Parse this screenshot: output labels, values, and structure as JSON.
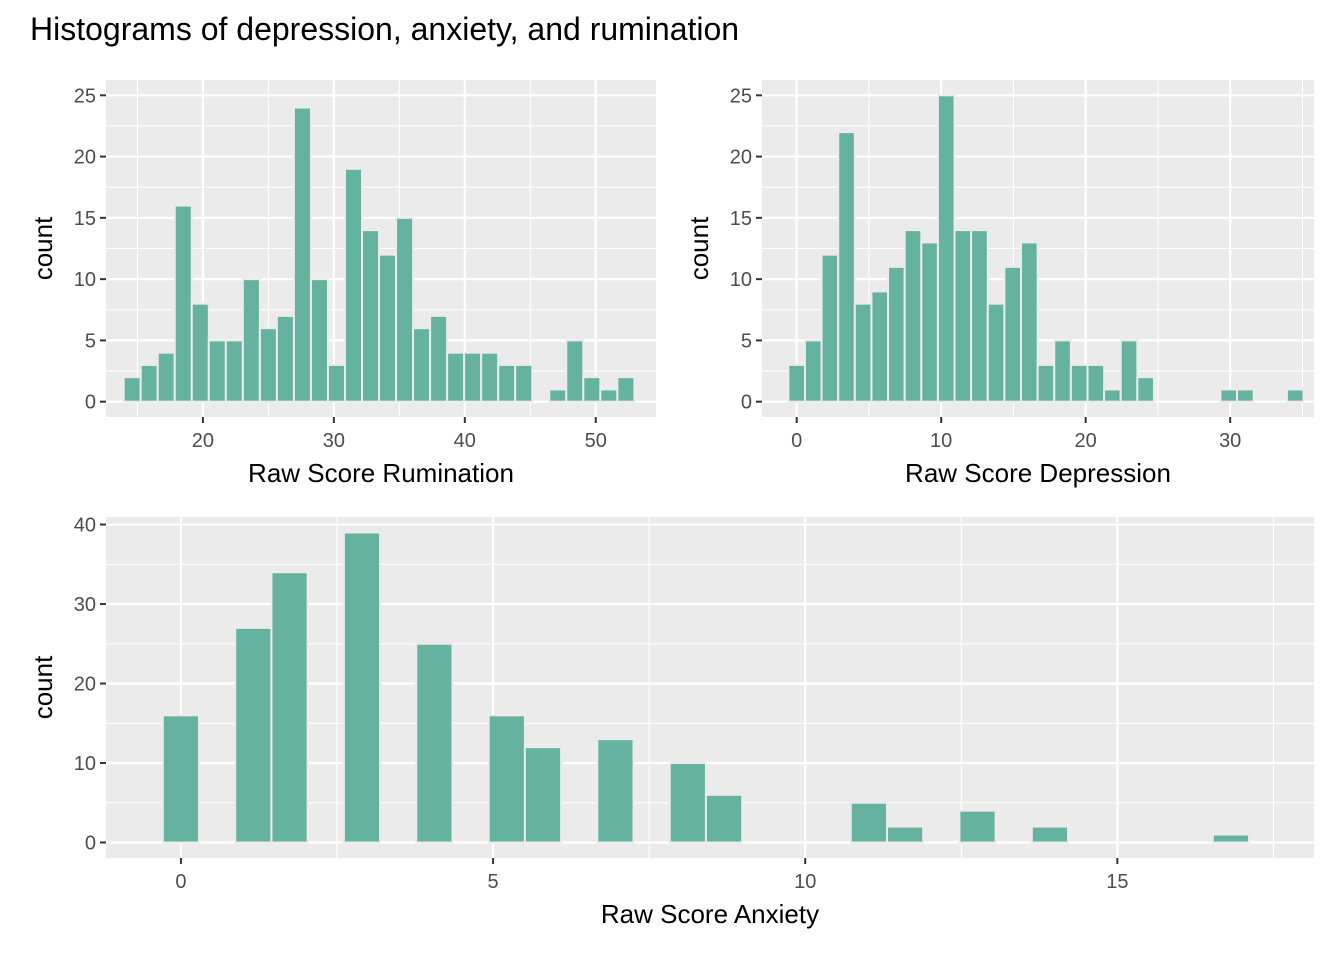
{
  "title": "Histograms of depression, anxiety, and rumination",
  "bar_color": "#66b2a0",
  "chart_data": [
    {
      "type": "bar",
      "xlabel": "Raw Score Rumination",
      "ylabel": "count",
      "xlim": [
        12.6,
        54.6
      ],
      "ylim": [
        -1.25,
        26.25
      ],
      "xticks": [
        20,
        30,
        40,
        50
      ],
      "yticks": [
        0,
        5,
        10,
        15,
        20,
        25
      ],
      "xminor": [
        15,
        25,
        35,
        45
      ],
      "yminor": [
        2.5,
        7.5,
        12.5,
        17.5,
        22.5
      ],
      "bin_width": 1.3,
      "bins": [
        {
          "x": 14.6,
          "count": 2
        },
        {
          "x": 15.9,
          "count": 3
        },
        {
          "x": 17.2,
          "count": 4
        },
        {
          "x": 18.5,
          "count": 16
        },
        {
          "x": 19.8,
          "count": 8
        },
        {
          "x": 21.1,
          "count": 5
        },
        {
          "x": 22.4,
          "count": 5
        },
        {
          "x": 23.7,
          "count": 10
        },
        {
          "x": 25.0,
          "count": 6
        },
        {
          "x": 26.3,
          "count": 7
        },
        {
          "x": 27.6,
          "count": 24
        },
        {
          "x": 28.9,
          "count": 10
        },
        {
          "x": 30.2,
          "count": 3
        },
        {
          "x": 31.5,
          "count": 19
        },
        {
          "x": 32.8,
          "count": 14
        },
        {
          "x": 34.1,
          "count": 12
        },
        {
          "x": 35.4,
          "count": 15
        },
        {
          "x": 36.7,
          "count": 6
        },
        {
          "x": 38.0,
          "count": 7
        },
        {
          "x": 39.3,
          "count": 4
        },
        {
          "x": 40.6,
          "count": 4
        },
        {
          "x": 41.9,
          "count": 4
        },
        {
          "x": 43.2,
          "count": 3
        },
        {
          "x": 44.5,
          "count": 3
        },
        {
          "x": 47.1,
          "count": 1
        },
        {
          "x": 48.4,
          "count": 5
        },
        {
          "x": 49.7,
          "count": 2
        },
        {
          "x": 51.0,
          "count": 1
        },
        {
          "x": 52.3,
          "count": 2
        }
      ]
    },
    {
      "type": "bar",
      "xlabel": "Raw Score Depression",
      "ylabel": "count",
      "xlim": [
        -2.4,
        35.8
      ],
      "ylim": [
        -1.25,
        26.25
      ],
      "xticks": [
        0,
        10,
        20,
        30
      ],
      "yticks": [
        0,
        5,
        10,
        15,
        20,
        25
      ],
      "xminor": [
        5,
        15,
        25,
        35
      ],
      "yminor": [
        2.5,
        7.5,
        12.5,
        17.5,
        22.5
      ],
      "bin_width": 1.15,
      "bins": [
        {
          "x": 0.0,
          "count": 3
        },
        {
          "x": 1.15,
          "count": 5
        },
        {
          "x": 2.3,
          "count": 12
        },
        {
          "x": 3.45,
          "count": 22
        },
        {
          "x": 4.6,
          "count": 8
        },
        {
          "x": 5.75,
          "count": 9
        },
        {
          "x": 6.9,
          "count": 11
        },
        {
          "x": 8.05,
          "count": 14
        },
        {
          "x": 9.2,
          "count": 13
        },
        {
          "x": 10.35,
          "count": 25
        },
        {
          "x": 11.5,
          "count": 14
        },
        {
          "x": 12.65,
          "count": 14
        },
        {
          "x": 13.8,
          "count": 8
        },
        {
          "x": 14.95,
          "count": 11
        },
        {
          "x": 16.1,
          "count": 13
        },
        {
          "x": 17.25,
          "count": 3
        },
        {
          "x": 18.4,
          "count": 5
        },
        {
          "x": 19.55,
          "count": 3
        },
        {
          "x": 20.7,
          "count": 3
        },
        {
          "x": 21.85,
          "count": 1
        },
        {
          "x": 23.0,
          "count": 5
        },
        {
          "x": 24.15,
          "count": 2
        },
        {
          "x": 29.9,
          "count": 1
        },
        {
          "x": 31.05,
          "count": 1
        },
        {
          "x": 34.5,
          "count": 1
        }
      ]
    },
    {
      "type": "bar",
      "xlabel": "Raw Score Anxiety",
      "ylabel": "count",
      "xlim": [
        -1.2,
        18.15
      ],
      "ylim": [
        -1.95,
        40.95
      ],
      "xticks": [
        0,
        5,
        10,
        15
      ],
      "yticks": [
        0,
        10,
        20,
        30,
        40
      ],
      "xminor": [
        2.5,
        7.5,
        12.5,
        17.5
      ],
      "yminor": [
        5,
        15,
        25,
        35
      ],
      "bin_width": 0.58,
      "bins": [
        {
          "x": 0.0,
          "count": 16
        },
        {
          "x": 1.16,
          "count": 27
        },
        {
          "x": 1.74,
          "count": 34
        },
        {
          "x": 2.9,
          "count": 39
        },
        {
          "x": 4.06,
          "count": 25
        },
        {
          "x": 5.22,
          "count": 16
        },
        {
          "x": 5.8,
          "count": 12
        },
        {
          "x": 6.96,
          "count": 13
        },
        {
          "x": 8.12,
          "count": 10
        },
        {
          "x": 8.7,
          "count": 6
        },
        {
          "x": 11.02,
          "count": 5
        },
        {
          "x": 11.6,
          "count": 2
        },
        {
          "x": 12.76,
          "count": 4
        },
        {
          "x": 13.92,
          "count": 2
        },
        {
          "x": 16.82,
          "count": 1
        }
      ]
    }
  ]
}
